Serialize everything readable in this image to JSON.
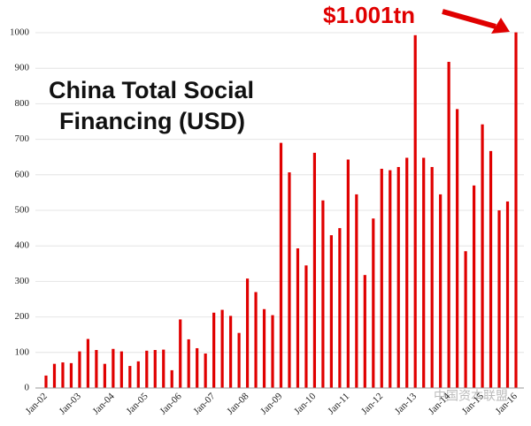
{
  "chart_data": {
    "type": "bar",
    "title": [
      "China Total Social",
      "Financing (USD)"
    ],
    "annotation": "$1.001tn",
    "watermark": "中国资本联盟",
    "color": "#e00000",
    "grid": true,
    "ylim": [
      0,
      1000
    ],
    "yticks": [
      0,
      100,
      200,
      300,
      400,
      500,
      600,
      700,
      800,
      900,
      1000
    ],
    "categories": [
      "Jan-02",
      null,
      null,
      null,
      "Jan-03",
      null,
      null,
      null,
      "Jan-04",
      null,
      null,
      null,
      "Jan-05",
      null,
      null,
      null,
      "Jan-06",
      null,
      null,
      null,
      "Jan-07",
      null,
      null,
      null,
      "Jan-08",
      null,
      null,
      null,
      "Jan-09",
      null,
      null,
      null,
      "Jan-10",
      null,
      null,
      null,
      "Jan-11",
      null,
      null,
      null,
      "Jan-12",
      null,
      null,
      null,
      "Jan-13",
      null,
      null,
      null,
      "Jan-14",
      null,
      null,
      null,
      "Jan-15",
      null,
      null,
      null,
      "Jan-16"
    ],
    "values": [
      35,
      68,
      72,
      70,
      103,
      138,
      107,
      68,
      110,
      103,
      62,
      75,
      105,
      107,
      108,
      50,
      193,
      137,
      112,
      97,
      212,
      220,
      203,
      155,
      308,
      270,
      222,
      205,
      690,
      607,
      393,
      345,
      662,
      528,
      430,
      450,
      643,
      545,
      318,
      477,
      617,
      613,
      622,
      648,
      993,
      648,
      622,
      545,
      918,
      785,
      385,
      570,
      742,
      667,
      500,
      525,
      1001
    ]
  }
}
